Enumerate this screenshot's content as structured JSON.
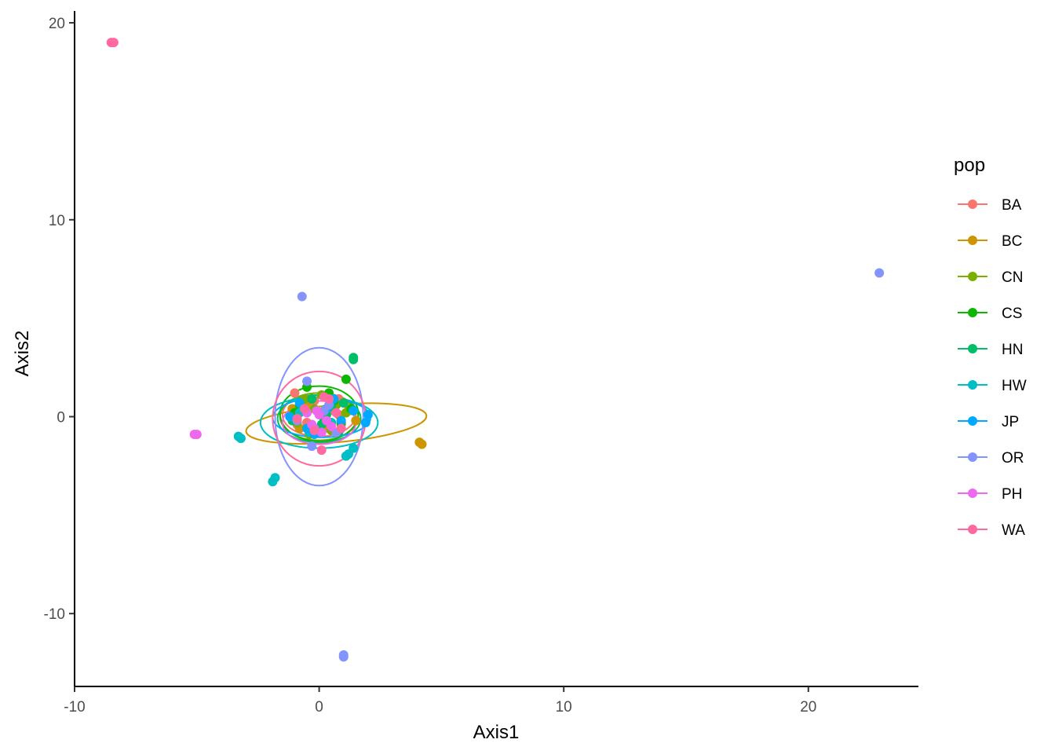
{
  "chart_data": {
    "type": "scatter",
    "title": "",
    "xlabel": "Axis1",
    "ylabel": "Axis2",
    "xlim": [
      -10,
      24.5
    ],
    "ylim": [
      -13.7,
      20.6
    ],
    "x_ticks": [
      -10,
      0,
      10,
      20
    ],
    "x_tick_labels": [
      "-10",
      "0",
      "10",
      "20"
    ],
    "y_ticks": [
      -10,
      0,
      10,
      20
    ],
    "y_tick_labels": [
      "-10",
      "0",
      "10",
      "20"
    ],
    "grid": false,
    "legend": {
      "title": "pop",
      "position": "right"
    },
    "series": [
      {
        "name": "BA",
        "color": "#F8766D",
        "points": [
          [
            -1.0,
            1.2
          ],
          [
            -0.7,
            0.5
          ],
          [
            -0.5,
            -0.3
          ],
          [
            -0.2,
            0.8
          ],
          [
            0.1,
            0.2
          ],
          [
            0.4,
            -0.6
          ],
          [
            0.8,
            0.9
          ],
          [
            -0.9,
            -0.4
          ],
          [
            0.6,
            0.3
          ],
          [
            -0.3,
            -0.8
          ]
        ],
        "ellipse": {
          "cx": 0.0,
          "cy": 0.1,
          "rx": 1.5,
          "ry": 1.1,
          "angle": 0
        }
      },
      {
        "name": "BC",
        "color": "#CD9600",
        "points": [
          [
            4.2,
            -1.4
          ],
          [
            4.1,
            -1.3
          ],
          [
            1.5,
            -0.2
          ],
          [
            -1.1,
            0.4
          ],
          [
            -0.5,
            0.7
          ],
          [
            0.2,
            -0.5
          ],
          [
            0.8,
            0.1
          ],
          [
            1.2,
            0.3
          ],
          [
            -0.8,
            -0.6
          ],
          [
            0.5,
            0.9
          ]
        ],
        "ellipse": {
          "cx": 0.7,
          "cy": -0.35,
          "rx": 3.7,
          "ry": 0.95,
          "angle": -5
        }
      },
      {
        "name": "CN",
        "color": "#7CAE00",
        "points": [
          [
            -0.6,
            0.9
          ],
          [
            -0.2,
            0.4
          ],
          [
            0.3,
            -0.2
          ],
          [
            0.7,
            0.6
          ],
          [
            -0.9,
            -0.3
          ],
          [
            0.5,
            -0.7
          ],
          [
            1.1,
            0.2
          ],
          [
            -0.4,
            -0.9
          ],
          [
            0.1,
            1.1
          ],
          [
            0.9,
            -0.4
          ]
        ],
        "ellipse": {
          "cx": 0.0,
          "cy": 0.0,
          "rx": 1.6,
          "ry": 1.2,
          "angle": 0
        }
      },
      {
        "name": "CS",
        "color": "#0CB702",
        "points": [
          [
            1.1,
            1.9
          ],
          [
            -0.5,
            1.5
          ],
          [
            -0.8,
            0.6
          ],
          [
            0.2,
            -0.1
          ],
          [
            0.6,
            0.8
          ],
          [
            -0.2,
            -0.6
          ],
          [
            0.9,
            -0.3
          ],
          [
            -1.0,
            0.2
          ],
          [
            0.4,
            1.2
          ],
          [
            1.3,
            0.4
          ]
        ],
        "ellipse": {
          "cx": 0.0,
          "cy": 0.15,
          "rx": 1.6,
          "ry": 1.4,
          "angle": 0
        }
      },
      {
        "name": "HN",
        "color": "#00BE67",
        "points": [
          [
            1.4,
            3.0
          ],
          [
            1.4,
            2.9
          ],
          [
            -0.7,
            0.3
          ],
          [
            0.1,
            -0.4
          ],
          [
            0.5,
            0.5
          ],
          [
            -0.3,
            0.9
          ],
          [
            0.8,
            -0.8
          ],
          [
            -1.1,
            -0.2
          ],
          [
            0.3,
            0.1
          ],
          [
            1.0,
            0.7
          ]
        ],
        "ellipse": {
          "cx": 0.0,
          "cy": -0.1,
          "rx": 1.7,
          "ry": 1.2,
          "angle": 0
        }
      },
      {
        "name": "HW",
        "color": "#00BFC4",
        "points": [
          [
            -1.9,
            -3.3
          ],
          [
            -1.8,
            -3.1
          ],
          [
            -3.3,
            -1.0
          ],
          [
            -3.2,
            -1.1
          ],
          [
            1.2,
            -1.9
          ],
          [
            1.1,
            -2.0
          ],
          [
            1.4,
            -1.6
          ],
          [
            -0.4,
            -0.8
          ],
          [
            0.5,
            -0.3
          ],
          [
            -0.8,
            0.2
          ]
        ],
        "ellipse": {
          "cx": 0.0,
          "cy": -0.3,
          "rx": 2.4,
          "ry": 1.3,
          "angle": 0
        }
      },
      {
        "name": "JP",
        "color": "#00A9FF",
        "points": [
          [
            2.0,
            0.1
          ],
          [
            1.9,
            -0.3
          ],
          [
            -1.2,
            0.0
          ],
          [
            -0.5,
            -0.6
          ],
          [
            0.3,
            0.4
          ],
          [
            0.9,
            -0.2
          ],
          [
            -0.8,
            0.7
          ],
          [
            0.6,
            0.9
          ],
          [
            -0.2,
            -0.9
          ],
          [
            1.4,
            0.3
          ]
        ],
        "ellipse": {
          "cx": 0.1,
          "cy": -0.05,
          "rx": 2.0,
          "ry": 1.0,
          "angle": 0
        }
      },
      {
        "name": "OR",
        "color": "#8494FF",
        "points": [
          [
            22.9,
            7.3
          ],
          [
            -0.7,
            6.1
          ],
          [
            1.0,
            -12.1
          ],
          [
            1.0,
            -12.2
          ],
          [
            -0.5,
            1.8
          ],
          [
            -0.3,
            -1.5
          ],
          [
            0.4,
            0.6
          ],
          [
            -0.9,
            -0.2
          ],
          [
            0.7,
            -0.8
          ],
          [
            0.2,
            0.3
          ]
        ],
        "ellipse": {
          "cx": 0.0,
          "cy": 0.0,
          "rx": 1.8,
          "ry": 3.5,
          "angle": 0
        }
      },
      {
        "name": "PH",
        "color": "#ED68ED",
        "points": [
          [
            -5.1,
            -0.9
          ],
          [
            -5.0,
            -0.9
          ],
          [
            -0.3,
            -0.4
          ],
          [
            0.0,
            0.1
          ],
          [
            -0.2,
            -0.6
          ],
          [
            0.3,
            -0.2
          ],
          [
            -0.5,
            0.2
          ],
          [
            0.5,
            -0.5
          ],
          [
            0.1,
            -0.8
          ],
          [
            -0.1,
            0.3
          ]
        ],
        "ellipse": {
          "cx": 0.0,
          "cy": -0.3,
          "rx": 1.5,
          "ry": 1.1,
          "angle": 0
        }
      },
      {
        "name": "WA",
        "color": "#FF68A1",
        "points": [
          [
            -8.5,
            19.0
          ],
          [
            -8.4,
            19.0
          ],
          [
            0.1,
            -1.7
          ],
          [
            -0.6,
            0.4
          ],
          [
            0.4,
            0.9
          ],
          [
            -0.2,
            -0.7
          ],
          [
            0.7,
            0.2
          ],
          [
            -0.9,
            -0.1
          ],
          [
            0.2,
            1.0
          ],
          [
            0.9,
            -0.6
          ]
        ],
        "ellipse": {
          "cx": 0.0,
          "cy": -0.1,
          "rx": 1.9,
          "ry": 2.4,
          "angle": 0
        }
      }
    ]
  }
}
